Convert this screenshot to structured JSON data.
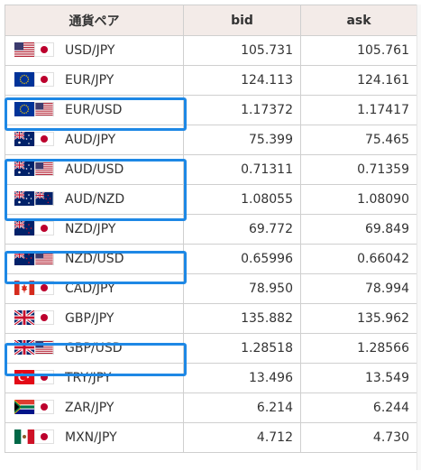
{
  "headers": {
    "pair": "通貨ペア",
    "bid": "bid",
    "ask": "ask"
  },
  "rows": [
    {
      "pair": "USD/JPY",
      "bid": "105.731",
      "ask": "105.761",
      "flags": [
        "us-flag-icon",
        "jp-flag-icon"
      ]
    },
    {
      "pair": "EUR/JPY",
      "bid": "124.113",
      "ask": "124.161",
      "flags": [
        "eu-flag-icon",
        "jp-flag-icon"
      ]
    },
    {
      "pair": "EUR/USD",
      "bid": "1.17372",
      "ask": "1.17417",
      "flags": [
        "eu-flag-icon",
        "us-flag-icon"
      ]
    },
    {
      "pair": "AUD/JPY",
      "bid": "75.399",
      "ask": "75.465",
      "flags": [
        "au-flag-icon",
        "jp-flag-icon"
      ]
    },
    {
      "pair": "AUD/USD",
      "bid": "0.71311",
      "ask": "0.71359",
      "flags": [
        "au-flag-icon",
        "us-flag-icon"
      ]
    },
    {
      "pair": "AUD/NZD",
      "bid": "1.08055",
      "ask": "1.08090",
      "flags": [
        "au-flag-icon",
        "nz-flag-icon"
      ]
    },
    {
      "pair": "NZD/JPY",
      "bid": "69.772",
      "ask": "69.849",
      "flags": [
        "nz-flag-icon",
        "jp-flag-icon"
      ]
    },
    {
      "pair": "NZD/USD",
      "bid": "0.65996",
      "ask": "0.66042",
      "flags": [
        "nz-flag-icon",
        "us-flag-icon"
      ]
    },
    {
      "pair": "CAD/JPY",
      "bid": "78.950",
      "ask": "78.994",
      "flags": [
        "ca-flag-icon",
        "jp-flag-icon"
      ]
    },
    {
      "pair": "GBP/JPY",
      "bid": "135.882",
      "ask": "135.962",
      "flags": [
        "gb-flag-icon",
        "jp-flag-icon"
      ]
    },
    {
      "pair": "GBP/USD",
      "bid": "1.28518",
      "ask": "1.28566",
      "flags": [
        "gb-flag-icon",
        "us-flag-icon"
      ]
    },
    {
      "pair": "TRY/JPY",
      "bid": "13.496",
      "ask": "13.549",
      "flags": [
        "tr-flag-icon",
        "jp-flag-icon"
      ]
    },
    {
      "pair": "ZAR/JPY",
      "bid": "6.214",
      "ask": "6.244",
      "flags": [
        "za-flag-icon",
        "jp-flag-icon"
      ]
    },
    {
      "pair": "MXN/JPY",
      "bid": "4.712",
      "ask": "4.730",
      "flags": [
        "mx-flag-icon",
        "jp-flag-icon"
      ]
    }
  ],
  "highlighted_pairs": [
    "EUR/USD",
    "AUD/USD",
    "AUD/NZD",
    "NZD/USD",
    "GBP/USD"
  ],
  "colors": {
    "highlight": "#1e88e5",
    "header_bg": "#f3ebe8",
    "border": "#cfcfcf"
  }
}
